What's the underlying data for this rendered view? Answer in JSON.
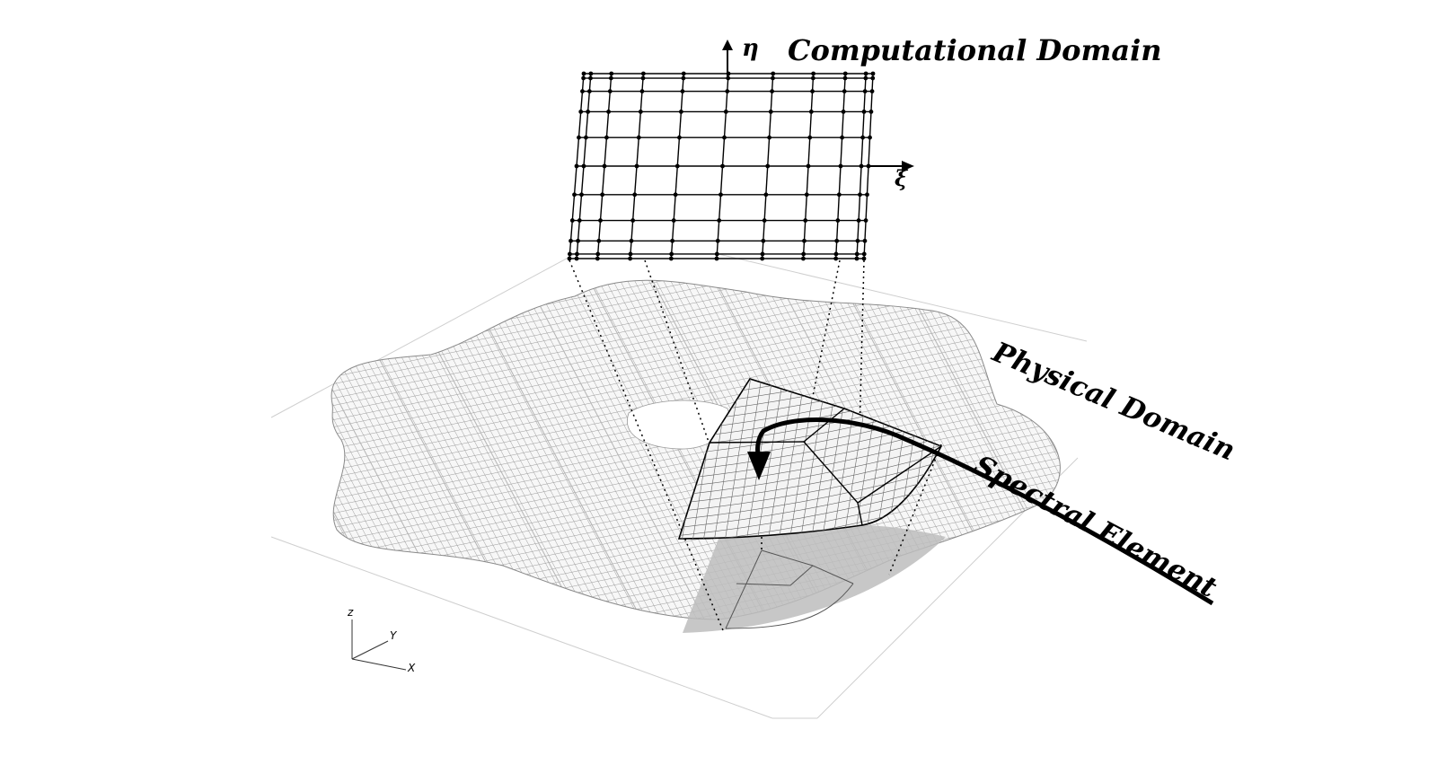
{
  "labels": {
    "computational_domain": "Computational Domain",
    "physical_domain": "Physical Domain",
    "spectral_element": "Spectral Element",
    "eta": "η",
    "xi": "ξ"
  },
  "axes_triad": {
    "z": "z",
    "y": "Y",
    "x": "X"
  },
  "colors": {
    "ink": "#000000",
    "mesh_line": "#9a9a9a",
    "domain_fill": "#f7f7f7",
    "shadow": "#bdbdbd",
    "floor_line": "#cfcfcf"
  },
  "grid": {
    "nodes_per_side": 11,
    "node_distribution": "Gauss-Lobatto"
  }
}
